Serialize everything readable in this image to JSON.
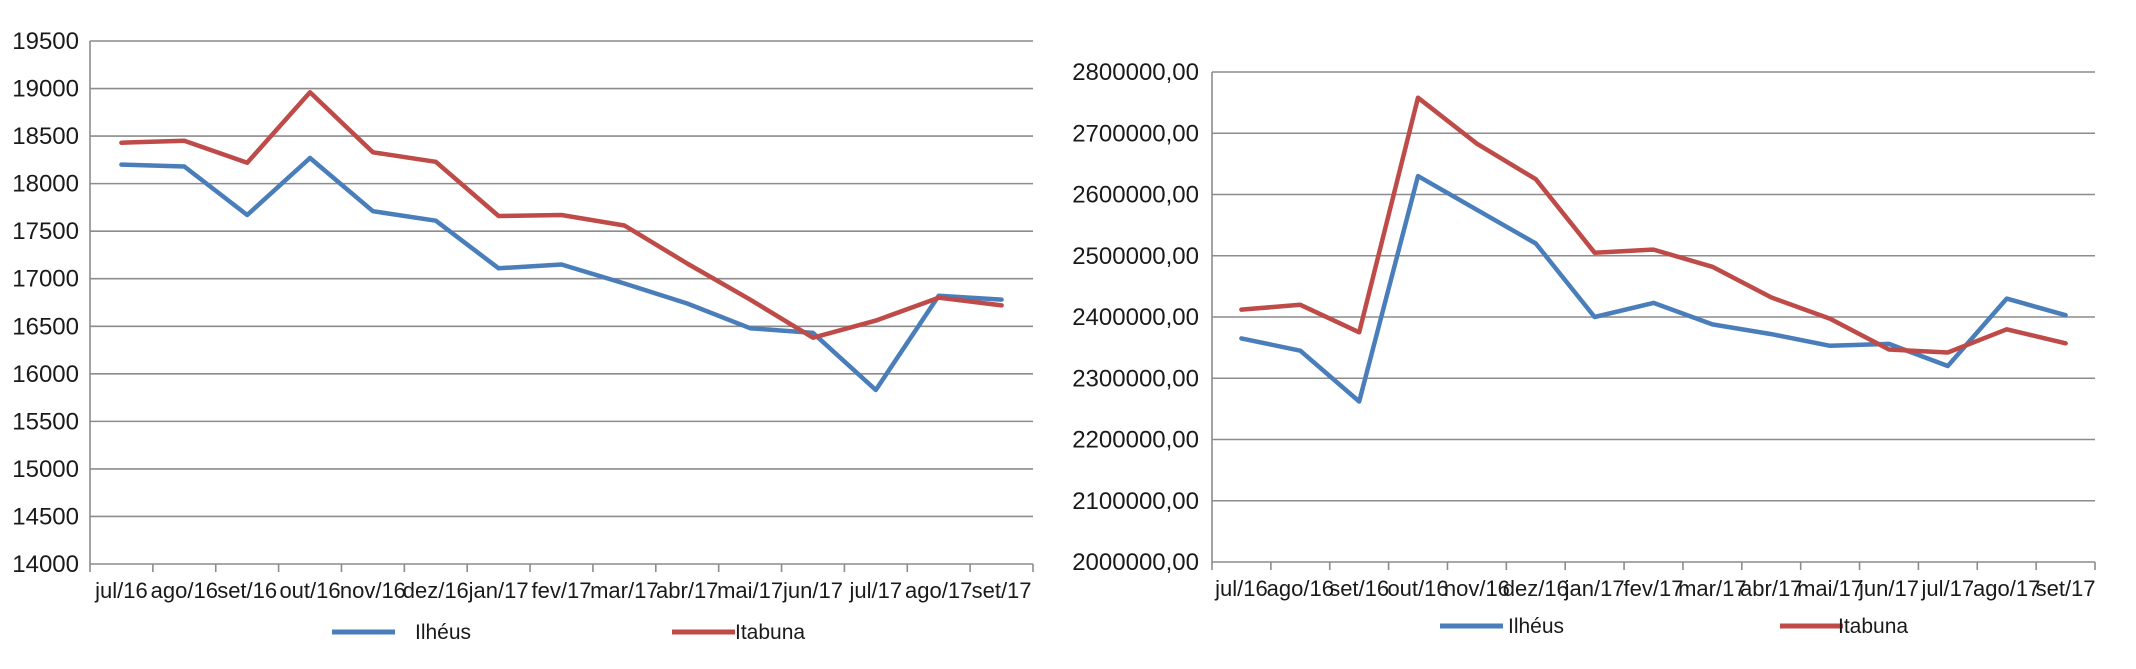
{
  "chart_data": [
    {
      "type": "line",
      "categories": [
        "jul/16",
        "ago/16",
        "set/16",
        "out/16",
        "nov/16",
        "dez/16",
        "jan/17",
        "fev/17",
        "mar/17",
        "abr/17",
        "mai/17",
        "jun/17",
        "jul/17",
        "ago/17",
        "set/17"
      ],
      "ylim": [
        14000,
        19500
      ],
      "yticks": [
        "14000",
        "14500",
        "15000",
        "15500",
        "16000",
        "16500",
        "17000",
        "17500",
        "18000",
        "18500",
        "19000",
        "19500"
      ],
      "grid": true,
      "legend": "bottom",
      "series": [
        {
          "name": "Ilhéus",
          "color": "#4a7ebb",
          "values": [
            18200,
            18180,
            17670,
            18270,
            17710,
            17610,
            17110,
            17150,
            16950,
            16740,
            16480,
            16430,
            15830,
            16820,
            16780
          ]
        },
        {
          "name": "Itabuna",
          "color": "#be4b48",
          "values": [
            18430,
            18450,
            18220,
            18960,
            18330,
            18230,
            17660,
            17670,
            17560,
            17160,
            16780,
            16380,
            16560,
            16800,
            16720
          ]
        }
      ]
    },
    {
      "type": "line",
      "categories": [
        "jul/16",
        "ago/16",
        "set/16",
        "out/16",
        "nov/16",
        "dez/16",
        "jan/17",
        "fev/17",
        "mar/17",
        "abr/17",
        "mai/17",
        "jun/17",
        "jul/17",
        "ago/17",
        "set/17"
      ],
      "ylim": [
        2000000,
        2800000
      ],
      "yticks": [
        "2000000,00",
        "2100000,00",
        "2200000,00",
        "2300000,00",
        "2400000,00",
        "2500000,00",
        "2600000,00",
        "2700000,00",
        "2800000,00"
      ],
      "grid": true,
      "legend": "bottom",
      "series": [
        {
          "name": "Ilhéus",
          "color": "#4a7ebb",
          "values": [
            2365000,
            2345000,
            2262000,
            2630000,
            2575000,
            2520000,
            2400000,
            2423000,
            2388000,
            2372000,
            2353000,
            2356000,
            2320000,
            2430000,
            2403000
          ]
        },
        {
          "name": "Itabuna",
          "color": "#be4b48",
          "values": [
            2412000,
            2420000,
            2375000,
            2758000,
            2683000,
            2625000,
            2505000,
            2510000,
            2482000,
            2432000,
            2397000,
            2347000,
            2342000,
            2380000,
            2357000
          ]
        }
      ]
    }
  ]
}
